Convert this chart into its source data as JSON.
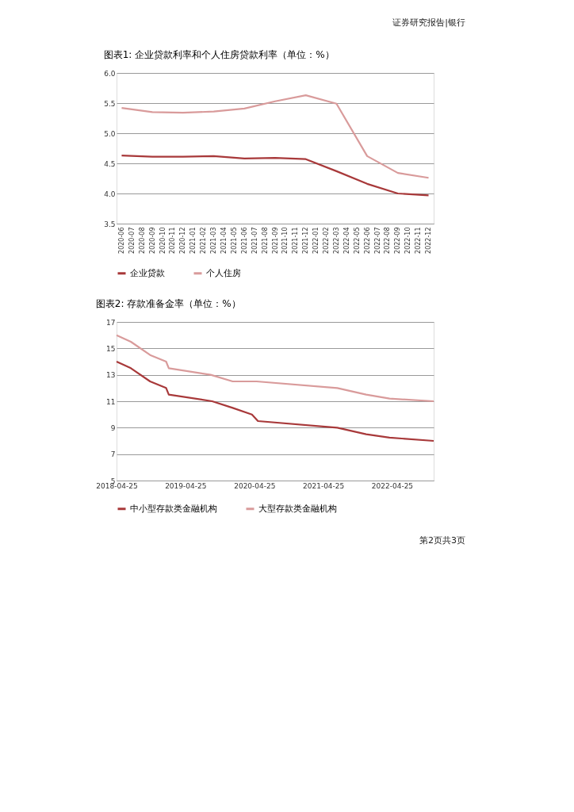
{
  "chart_data": [
    {
      "type": "line",
      "title": "图表1:   企业贷款利率和个人住房贷款利率（单位：%）",
      "annotations": [
        "证券研究报告|银行"
      ],
      "categories": [
        "2020-06",
        "2020-07",
        "2020-08",
        "2020-09",
        "2020-10",
        "2020-11",
        "2020-12",
        "2021-01",
        "2021-02",
        "2021-03",
        "2021-04",
        "2021-05",
        "2021-06",
        "2021-07",
        "2021-08",
        "2021-09",
        "2021-10",
        "2021-11",
        "2021-12",
        "2022-01",
        "2022-02",
        "2022-03",
        "2022-04",
        "2022-05",
        "2022-06",
        "2022-07",
        "2022-08",
        "2022-09",
        "2022-10",
        "2022-11",
        "2022-12"
      ],
      "series": [
        {
          "name": "企业贷款",
          "color": "#a8393a",
          "values": [
            4.63,
            null,
            null,
            4.61,
            null,
            null,
            4.61,
            null,
            null,
            4.62,
            null,
            null,
            4.58,
            null,
            null,
            4.59,
            null,
            null,
            4.57,
            null,
            null,
            4.37,
            null,
            null,
            4.16,
            null,
            null,
            4.0,
            null,
            null,
            3.97
          ]
        },
        {
          "name": "个人住房",
          "color": "#d99b9b",
          "values": [
            5.42,
            null,
            null,
            5.35,
            null,
            null,
            5.34,
            null,
            null,
            5.36,
            null,
            null,
            5.41,
            null,
            null,
            5.53,
            null,
            null,
            5.63,
            null,
            null,
            5.49,
            null,
            null,
            4.62,
            null,
            null,
            4.34,
            null,
            null,
            4.26
          ]
        }
      ],
      "ylim": [
        3.5,
        6.0
      ],
      "yticks": [
        {
          "value": 3.5,
          "label": "3.5"
        },
        {
          "value": 4,
          "label": "4.0"
        },
        {
          "value": 4.5,
          "label": "4.5"
        },
        {
          "value": 5,
          "label": "5.0"
        },
        {
          "value": 5.5,
          "label": "5.5"
        },
        {
          "value": 6,
          "label": "6.0"
        }
      ],
      "grid": "y",
      "legend": "bottom",
      "marker": "none"
    },
    {
      "type": "line",
      "title": "图表2:   存款准备金率（单位：%）",
      "annotations": [
        "第2页共3页"
      ],
      "series": [
        {
          "name": "中小型存款类金融机构",
          "color": "#a8393a",
          "x": [
            "2018-04-25",
            "2018-07-10",
            "2018-10-20",
            "2019-01-13",
            "2019-01-27",
            "2019-09-14",
            "2020-01-01",
            "2020-04-12",
            "2020-05-14",
            "2021-07-09",
            "2021-12-09",
            "2022-04-12",
            "2022-12-02"
          ],
          "values": [
            14.0,
            13.5,
            12.5,
            12.0,
            11.5,
            11.0,
            10.5,
            10.0,
            9.5,
            9.0,
            8.5,
            8.25,
            8.0
          ]
        },
        {
          "name": "大型存款类金融机构",
          "color": "#d99b9b",
          "x": [
            "2018-04-25",
            "2018-07-10",
            "2018-10-20",
            "2019-01-13",
            "2019-01-27",
            "2019-09-06",
            "2020-01-01",
            "2020-05-07",
            "2021-07-09",
            "2021-12-09",
            "2022-04-12",
            "2022-12-02"
          ],
          "values": [
            16.0,
            15.5,
            14.5,
            14.0,
            13.5,
            13.0,
            12.5,
            12.5,
            12.0,
            11.5,
            11.2,
            11.0
          ]
        }
      ],
      "xlim": [
        "2018-04-25",
        "2022-12-02"
      ],
      "xticks": [
        "2018-04-25",
        "2019-04-25",
        "2020-04-25",
        "2021-04-25",
        "2022-04-25"
      ],
      "ylim": [
        5,
        17
      ],
      "yticks": [
        5,
        7,
        9,
        11,
        13,
        15,
        17
      ],
      "grid": "y",
      "legend": "bottom",
      "marker": "none"
    }
  ]
}
